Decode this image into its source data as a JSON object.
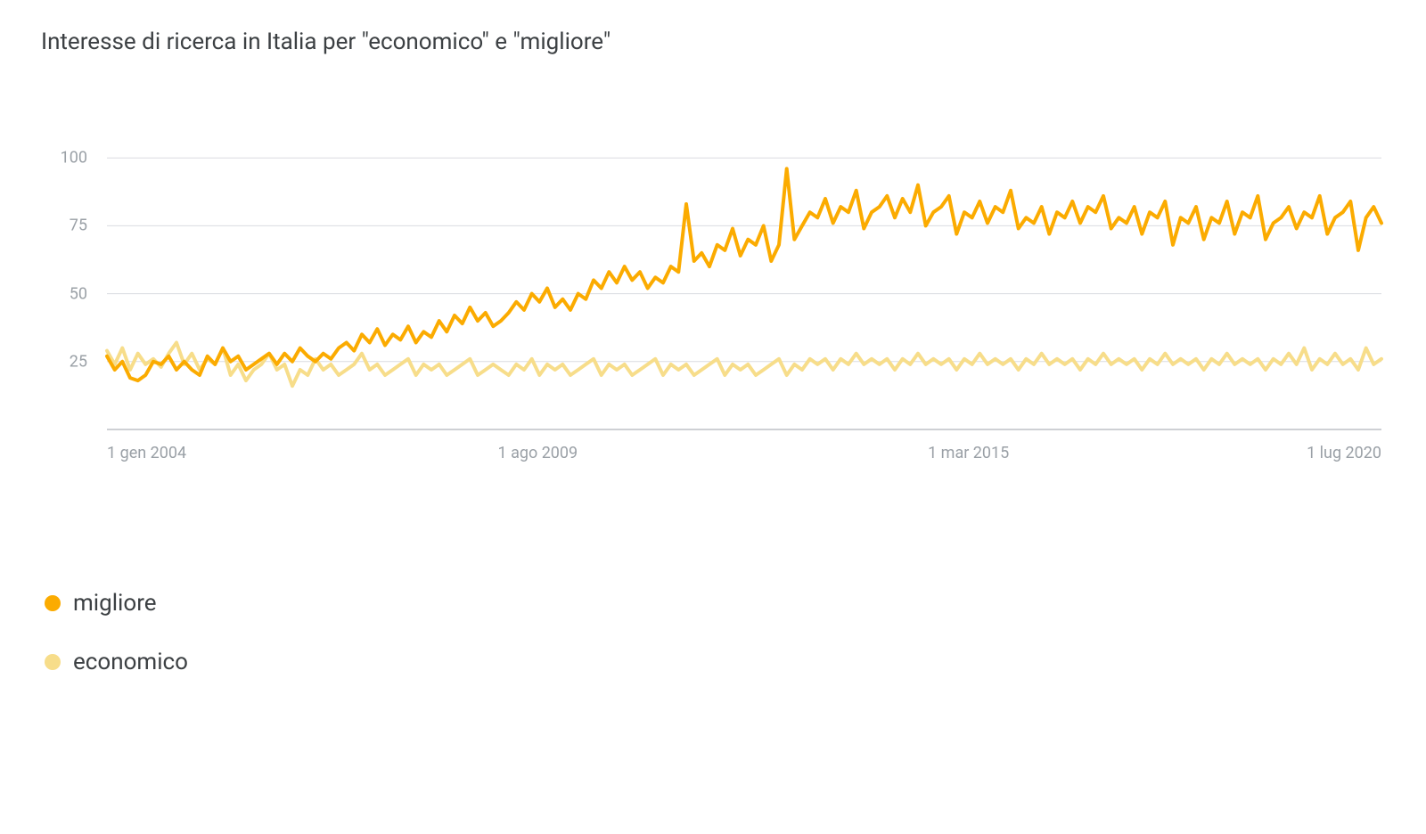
{
  "title": "Interesse di ricerca in Italia per \"economico\" e \"migliore\"",
  "chart": {
    "type": "line",
    "background_color": "#ffffff",
    "grid_color": "#dadce0",
    "axis_line_color": "#bdc1c6",
    "ylim": [
      0,
      105
    ],
    "yticks": [
      25,
      50,
      75,
      100
    ],
    "ytick_labels": [
      "25",
      "50",
      "75",
      "100"
    ],
    "ytick_color": "#9aa0a6",
    "ytick_fontsize": 18,
    "xticks": [
      {
        "pos": 0.0,
        "label": "1 gen 2004",
        "align": "left"
      },
      {
        "pos": 0.338,
        "label": "1 ago 2009",
        "align": "center"
      },
      {
        "pos": 0.676,
        "label": "1 mar 2015",
        "align": "center"
      },
      {
        "pos": 1.0,
        "label": "1 lug 2020",
        "align": "right"
      }
    ],
    "xtick_color": "#9aa0a6",
    "xtick_fontsize": 18,
    "line_width": 4,
    "series": [
      {
        "name": "migliore",
        "color": "#fbab00",
        "values": [
          27,
          22,
          25,
          19,
          18,
          20,
          25,
          24,
          27,
          22,
          25,
          22,
          20,
          27,
          24,
          30,
          25,
          27,
          22,
          24,
          26,
          28,
          24,
          28,
          25,
          30,
          27,
          25,
          28,
          26,
          30,
          32,
          29,
          35,
          32,
          37,
          31,
          35,
          33,
          38,
          32,
          36,
          34,
          40,
          36,
          42,
          39,
          45,
          40,
          43,
          38,
          40,
          43,
          47,
          44,
          50,
          47,
          52,
          45,
          48,
          44,
          50,
          48,
          55,
          52,
          58,
          54,
          60,
          55,
          58,
          52,
          56,
          54,
          60,
          58,
          83,
          62,
          65,
          60,
          68,
          66,
          74,
          64,
          70,
          68,
          75,
          62,
          68,
          96,
          70,
          75,
          80,
          78,
          85,
          76,
          82,
          80,
          88,
          74,
          80,
          82,
          86,
          78,
          85,
          80,
          90,
          75,
          80,
          82,
          86,
          72,
          80,
          78,
          84,
          76,
          82,
          80,
          88,
          74,
          78,
          76,
          82,
          72,
          80,
          78,
          84,
          76,
          82,
          80,
          86,
          74,
          78,
          76,
          82,
          72,
          80,
          78,
          84,
          68,
          78,
          76,
          82,
          70,
          78,
          76,
          84,
          72,
          80,
          78,
          86,
          70,
          76,
          78,
          82,
          74,
          80,
          78,
          86,
          72,
          78,
          80,
          84,
          66,
          78,
          82,
          76
        ]
      },
      {
        "name": "economico",
        "color": "#f7dd8a",
        "values": [
          29,
          24,
          30,
          22,
          28,
          24,
          26,
          23,
          28,
          32,
          24,
          28,
          22,
          26,
          24,
          30,
          20,
          24,
          18,
          22,
          24,
          28,
          22,
          24,
          16,
          22,
          20,
          26,
          22,
          24,
          20,
          22,
          24,
          28,
          22,
          24,
          20,
          22,
          24,
          26,
          20,
          24,
          22,
          24,
          20,
          22,
          24,
          26,
          20,
          22,
          24,
          22,
          20,
          24,
          22,
          26,
          20,
          24,
          22,
          24,
          20,
          22,
          24,
          26,
          20,
          24,
          22,
          24,
          20,
          22,
          24,
          26,
          20,
          24,
          22,
          24,
          20,
          22,
          24,
          26,
          20,
          24,
          22,
          24,
          20,
          22,
          24,
          26,
          20,
          24,
          22,
          26,
          24,
          26,
          22,
          26,
          24,
          28,
          24,
          26,
          24,
          26,
          22,
          26,
          24,
          28,
          24,
          26,
          24,
          26,
          22,
          26,
          24,
          28,
          24,
          26,
          24,
          26,
          22,
          26,
          24,
          28,
          24,
          26,
          24,
          26,
          22,
          26,
          24,
          28,
          24,
          26,
          24,
          26,
          22,
          26,
          24,
          28,
          24,
          26,
          24,
          26,
          22,
          26,
          24,
          28,
          24,
          26,
          24,
          26,
          22,
          26,
          24,
          28,
          24,
          30,
          22,
          26,
          24,
          28,
          24,
          26,
          22,
          30,
          24,
          26
        ]
      }
    ]
  },
  "legend": {
    "items": [
      {
        "label": "migliore",
        "color": "#fbab00"
      },
      {
        "label": "economico",
        "color": "#f7dd8a"
      }
    ],
    "fontsize": 26
  }
}
